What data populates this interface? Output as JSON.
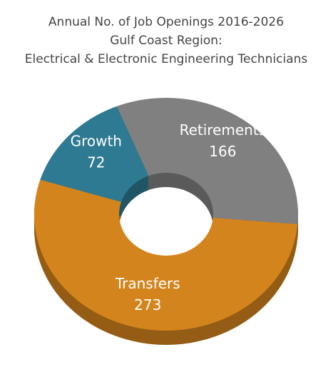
{
  "chart_data": {
    "type": "donut",
    "title": [
      "Annual No. of Job Openings 2016-2026",
      "Gulf Coast Region:",
      "Electrical & Electronic Engineering Technicians"
    ],
    "categories": [
      "Retirements",
      "Transfers",
      "Growth"
    ],
    "values": [
      166,
      273,
      72
    ],
    "colors": [
      "#808080",
      "#d4841c",
      "#2e7a92"
    ]
  }
}
